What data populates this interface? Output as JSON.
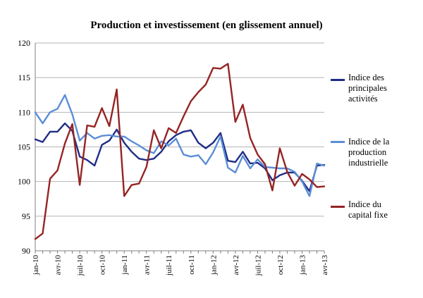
{
  "chart_data": {
    "type": "line",
    "title": "Production et investissement (en glissement annuel)",
    "xlabel": "",
    "ylabel": "",
    "ylim": [
      90,
      120
    ],
    "yticks": [
      90,
      95,
      100,
      105,
      110,
      115,
      120
    ],
    "grid": true,
    "legend_position": "right",
    "x": [
      "jan-10",
      "fév-10",
      "mar-10",
      "avr-10",
      "mai-10",
      "jun-10",
      "juil-10",
      "aoû-10",
      "sep-10",
      "oct-10",
      "nov-10",
      "déc-10",
      "jan-11",
      "fév-11",
      "mar-11",
      "avr-11",
      "mai-11",
      "jun-11",
      "juil-11",
      "aoû-11",
      "sep-11",
      "oct-11",
      "nov-11",
      "déc-11",
      "jan-12",
      "fév-12",
      "mar-12",
      "avr-12",
      "mai-12",
      "jun-12",
      "juil-12",
      "aoû-12",
      "sep-12",
      "oct-12",
      "nov-12",
      "déc-12",
      "jan-13",
      "fév-13",
      "mar-13",
      "avr-13"
    ],
    "tick_labels": [
      {
        "index": 0,
        "label": "jan-10"
      },
      {
        "index": 3,
        "label": "avr-10"
      },
      {
        "index": 6,
        "label": "juil-10"
      },
      {
        "index": 9,
        "label": "oct-10"
      },
      {
        "index": 12,
        "label": "jan-11"
      },
      {
        "index": 15,
        "label": "avr-11"
      },
      {
        "index": 18,
        "label": "juil-11"
      },
      {
        "index": 21,
        "label": "oct-11"
      },
      {
        "index": 24,
        "label": "jan-12"
      },
      {
        "index": 27,
        "label": "avr-12"
      },
      {
        "index": 30,
        "label": "juil-12"
      },
      {
        "index": 33,
        "label": "oct-12"
      },
      {
        "index": 36,
        "label": "jan-13"
      },
      {
        "index": 39,
        "label": "avr-13"
      }
    ],
    "series": [
      {
        "name": "Indice des principales activités",
        "legend_text": "Indice des\nprincipales\nactivités",
        "color": "#1f2d86",
        "values": [
          106.1,
          105.7,
          107.2,
          107.2,
          108.4,
          107.3,
          103.6,
          103.1,
          102.3,
          105.3,
          105.9,
          107.5,
          105.6,
          104.3,
          103.3,
          103.1,
          103.3,
          104.3,
          105.8,
          106.7,
          107.2,
          107.4,
          105.6,
          104.8,
          105.6,
          107.0,
          103.0,
          102.8,
          104.3,
          102.6,
          102.7,
          101.9,
          100.2,
          100.9,
          101.3,
          101.3,
          100.1,
          98.6,
          102.3,
          102.4
        ]
      },
      {
        "name": "Indice de la production industrielle",
        "legend_text": "Indice de la\nproduction\nindustrielle",
        "color": "#5b8ed6",
        "values": [
          110.0,
          108.4,
          110.0,
          110.5,
          112.5,
          109.7,
          105.9,
          107.0,
          106.2,
          106.6,
          106.7,
          106.5,
          106.5,
          105.8,
          105.2,
          104.5,
          104.1,
          105.8,
          105.2,
          106.2,
          103.9,
          103.6,
          103.8,
          102.5,
          104.2,
          106.5,
          102.0,
          101.3,
          103.7,
          101.9,
          103.2,
          102.1,
          102.0,
          101.9,
          101.9,
          101.4,
          100.0,
          97.9,
          102.6,
          102.3
        ]
      },
      {
        "name": "Indice du capital fixe",
        "legend_text": "Indice du\ncapital fixe",
        "color": "#962424",
        "values": [
          91.7,
          92.5,
          100.4,
          101.6,
          105.5,
          108.3,
          99.5,
          108.1,
          107.9,
          110.6,
          108.0,
          113.3,
          97.9,
          99.5,
          99.7,
          102.1,
          107.4,
          104.8,
          107.7,
          107.0,
          109.4,
          111.6,
          112.9,
          114.0,
          116.4,
          116.3,
          117.0,
          108.6,
          111.1,
          106.3,
          103.9,
          102.5,
          98.7,
          104.8,
          101.4,
          99.4,
          101.1,
          100.3,
          99.2,
          99.3
        ]
      }
    ]
  }
}
